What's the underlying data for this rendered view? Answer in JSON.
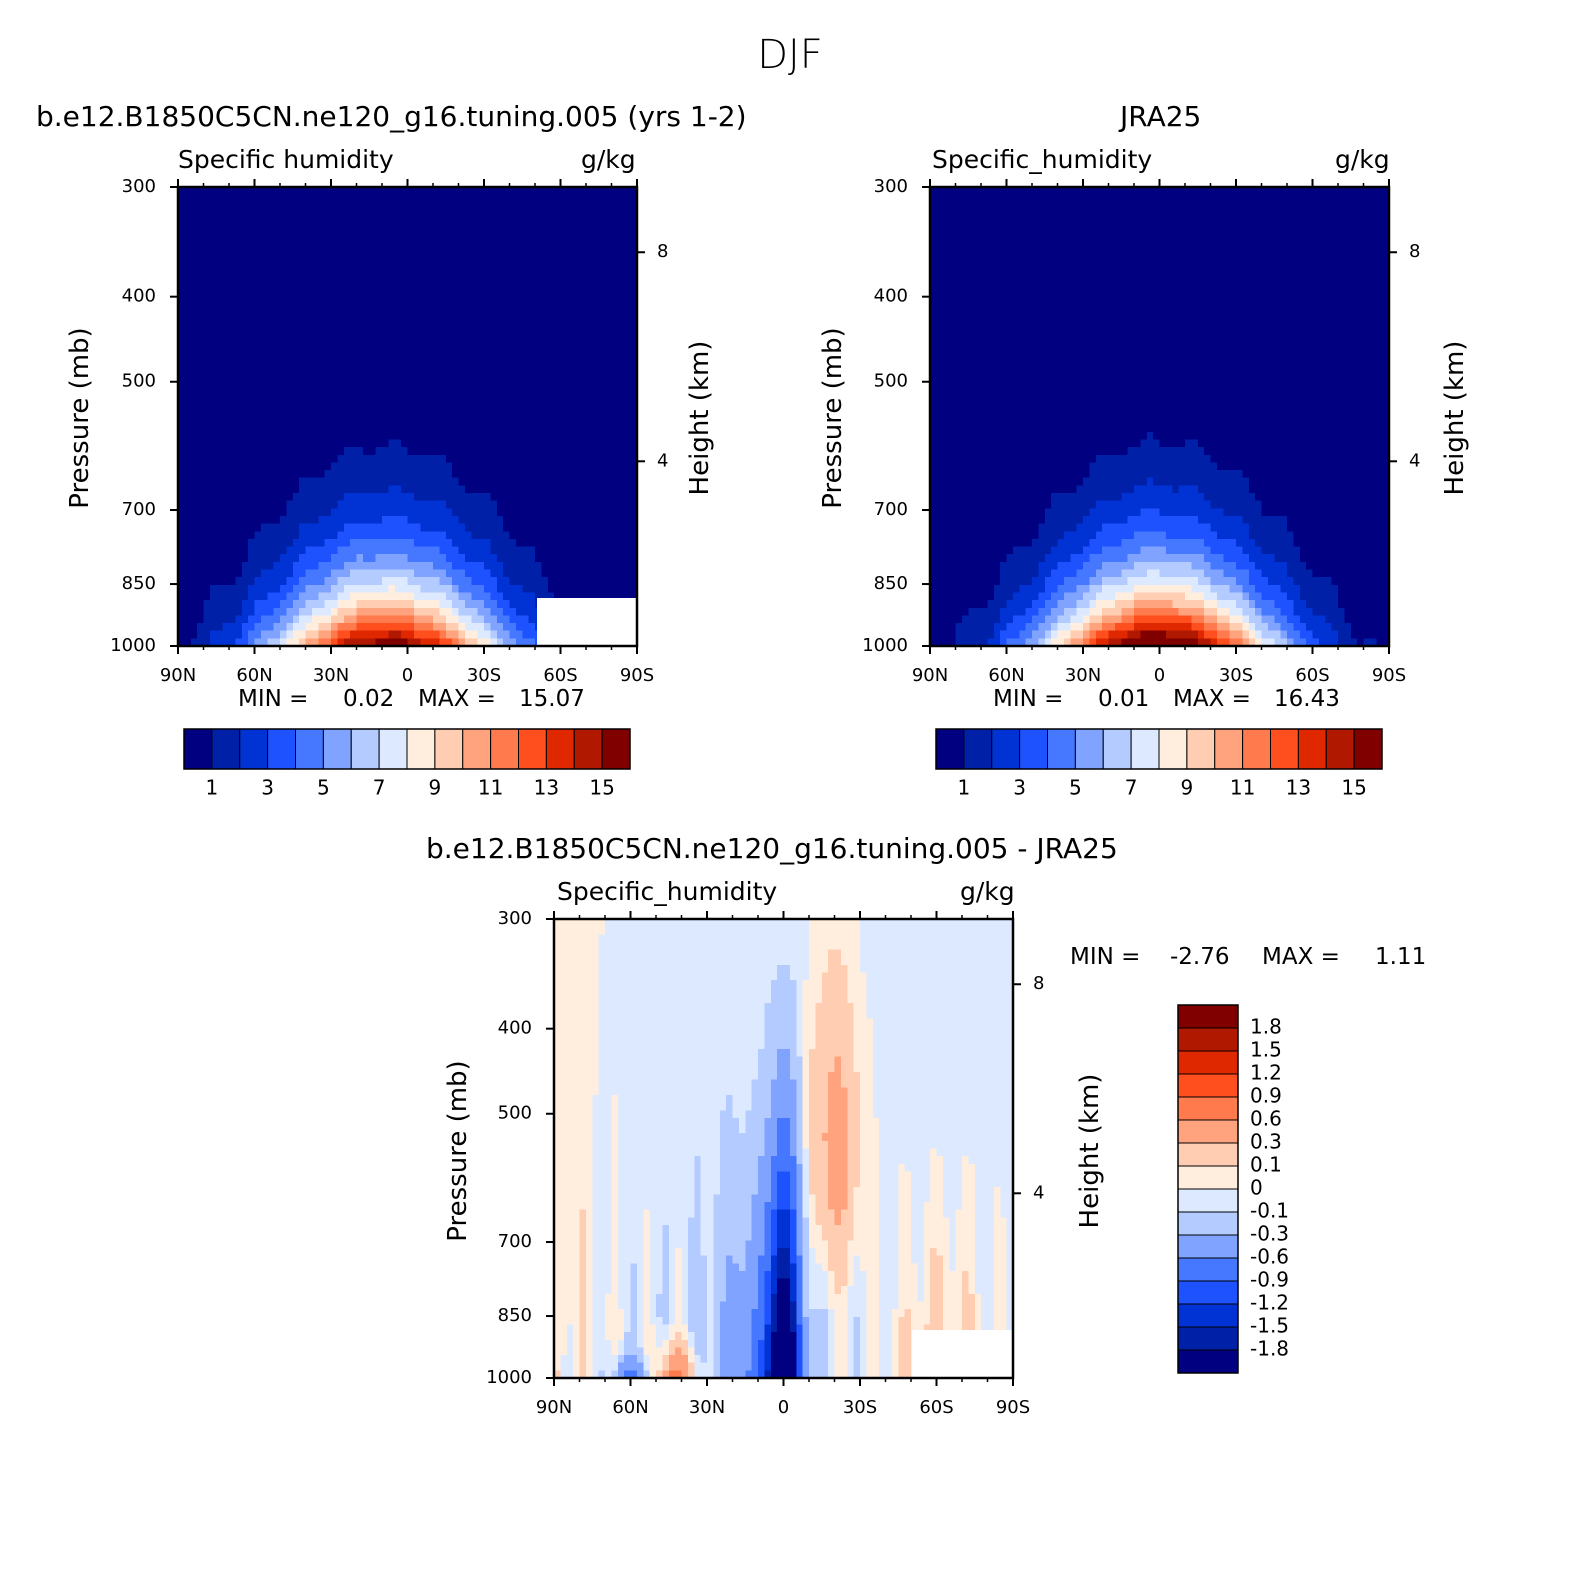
{
  "title": "DJF",
  "variable": "Specific_humidity",
  "units": "g/kg",
  "y_axis_label": "Pressure (mb)",
  "y2_axis_label": "Height (km)",
  "colors": {
    "abs": [
      "#000080",
      "#0020a8",
      "#0032d4",
      "#1e52ff",
      "#4678ff",
      "#7fa3ff",
      "#b4cbff",
      "#dde9ff",
      "#ffeedd",
      "#ffcdb1",
      "#ffa37f",
      "#ff7a4c",
      "#ff4f1e",
      "#e02800",
      "#b01800",
      "#800000"
    ],
    "diff": [
      "#800000",
      "#b01800",
      "#e02800",
      "#ff4f1e",
      "#ff7a4c",
      "#ffa37f",
      "#ffcdb1",
      "#ffeedd",
      "#dde9ff",
      "#b4cbff",
      "#7fa3ff",
      "#4678ff",
      "#1e52ff",
      "#0032d4",
      "#0020a8",
      "#000080"
    ]
  },
  "chart_data": [
    {
      "type": "heatmap",
      "title": "b.e12.B1850C5CN.ne120_g16.tuning.005 (yrs 1-2)",
      "subtitle_left": "Specific humidity",
      "subtitle_right": "g/kg",
      "x_ticks": [
        "90N",
        "60N",
        "30N",
        "0",
        "30S",
        "60S",
        "90S"
      ],
      "y_ticks": [
        "300",
        "400",
        "500",
        "700",
        "850",
        "1000"
      ],
      "y2_ticks": [
        "8",
        "4"
      ],
      "xlim": [
        90,
        -90
      ],
      "ylim": [
        1000,
        300
      ],
      "min_label": "MIN =",
      "min_value": "0.02",
      "max_label": "MAX =",
      "max_value": "15.07",
      "min": 0.02,
      "max": 15.07,
      "peak_lat": 8,
      "colorbar_labels": [
        "1",
        "3",
        "5",
        "7",
        "9",
        "11",
        "13",
        "15"
      ],
      "levels": [
        1,
        2,
        3,
        4,
        5,
        6,
        7,
        8,
        9,
        10,
        11,
        12,
        13,
        14,
        15
      ]
    },
    {
      "type": "heatmap",
      "title": "JRA25",
      "subtitle_left": "Specific_humidity",
      "subtitle_right": "g/kg",
      "x_ticks": [
        "90N",
        "60N",
        "30N",
        "0",
        "30S",
        "60S",
        "90S"
      ],
      "y_ticks": [
        "300",
        "400",
        "500",
        "700",
        "850",
        "1000"
      ],
      "y2_ticks": [
        "8",
        "4"
      ],
      "xlim": [
        90,
        -90
      ],
      "ylim": [
        1000,
        300
      ],
      "min_label": "MIN =",
      "min_value": "0.01",
      "max_label": "MAX =",
      "max_value": "16.43",
      "min": 0.01,
      "max": 16.43,
      "peak_lat": 0,
      "colorbar_labels": [
        "1",
        "3",
        "5",
        "7",
        "9",
        "11",
        "13",
        "15"
      ],
      "levels": [
        1,
        2,
        3,
        4,
        5,
        6,
        7,
        8,
        9,
        10,
        11,
        12,
        13,
        14,
        15
      ]
    },
    {
      "type": "heatmap",
      "title": "b.e12.B1850C5CN.ne120_g16.tuning.005 - JRA25",
      "subtitle_left": "Specific_humidity",
      "subtitle_right": "g/kg",
      "x_ticks": [
        "90N",
        "60N",
        "30N",
        "0",
        "30S",
        "60S",
        "90S"
      ],
      "y_ticks": [
        "300",
        "400",
        "500",
        "700",
        "850",
        "1000"
      ],
      "y2_ticks": [
        "8",
        "4"
      ],
      "xlim": [
        90,
        -90
      ],
      "ylim": [
        1000,
        300
      ],
      "min_label": "MIN =",
      "min_value": "-2.76",
      "max_label": "MAX =",
      "max_value": "1.11",
      "min": -2.76,
      "max": 1.11,
      "colorbar_labels": [
        "1.8",
        "1.5",
        "1.2",
        "0.9",
        "0.6",
        "0.3",
        "0.1",
        "0",
        "-0.1",
        "-0.3",
        "-0.6",
        "-0.9",
        "-1.2",
        "-1.5",
        "-1.8"
      ],
      "levels": [
        1.8,
        1.5,
        1.2,
        0.9,
        0.6,
        0.3,
        0.1,
        0,
        -0.1,
        -0.3,
        -0.6,
        -0.9,
        -1.2,
        -1.5,
        -1.8
      ]
    }
  ]
}
